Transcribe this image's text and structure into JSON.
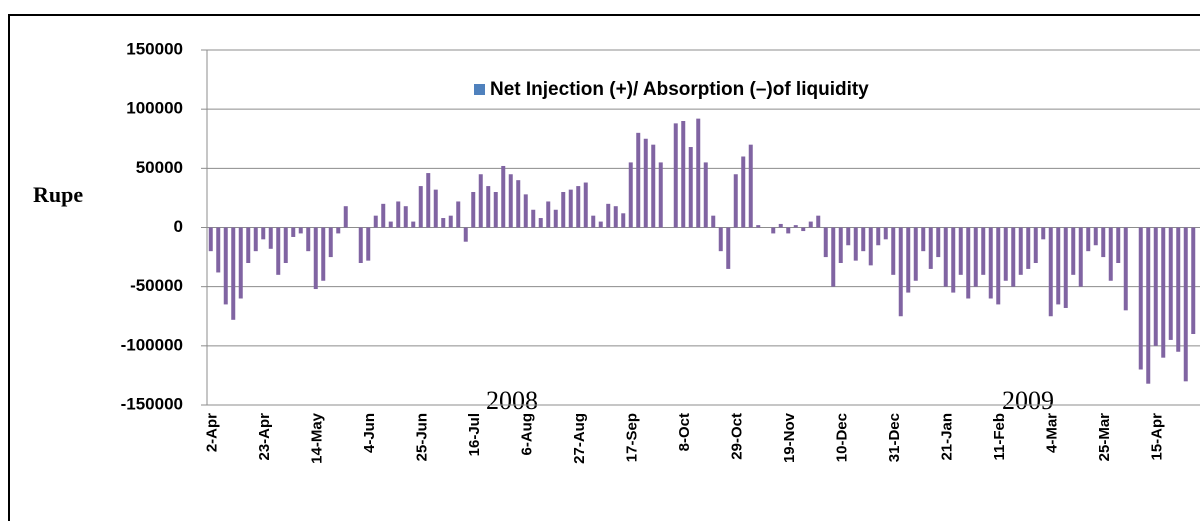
{
  "chart_data": {
    "type": "bar",
    "y_label": "Rupe",
    "annotations": [
      "2008",
      "2009"
    ],
    "categories": [
      "2-Apr",
      null,
      null,
      null,
      null,
      null,
      null,
      "23-Apr",
      null,
      null,
      null,
      null,
      null,
      null,
      "14-May",
      null,
      null,
      null,
      null,
      null,
      null,
      "4-Jun",
      null,
      null,
      null,
      null,
      null,
      null,
      "25-Jun",
      null,
      null,
      null,
      null,
      null,
      null,
      "16-Jul",
      null,
      null,
      null,
      null,
      null,
      null,
      "6-Aug",
      null,
      null,
      null,
      null,
      null,
      null,
      "27-Aug",
      null,
      null,
      null,
      null,
      null,
      null,
      "17-Sep",
      null,
      null,
      null,
      null,
      null,
      null,
      "8-Oct",
      null,
      null,
      null,
      null,
      null,
      null,
      "29-Oct",
      null,
      null,
      null,
      null,
      null,
      null,
      "19-Nov",
      null,
      null,
      null,
      null,
      null,
      null,
      "10-Dec",
      null,
      null,
      null,
      null,
      null,
      null,
      "31-Dec",
      null,
      null,
      null,
      null,
      null,
      null,
      "21-Jan",
      null,
      null,
      null,
      null,
      null,
      null,
      "11-Feb",
      null,
      null,
      null,
      null,
      null,
      null,
      "4-Mar",
      null,
      null,
      null,
      null,
      null,
      null,
      "25-Mar",
      null,
      null,
      null,
      null,
      null,
      null,
      "15-Apr",
      null,
      null,
      null,
      null,
      null
    ],
    "series": [
      {
        "name": "Net Injection (+)/ Absorption (–)of liquidity",
        "color": "#8064a2",
        "legend_color": "#4f81bd",
        "values": [
          -20000,
          -38000,
          -65000,
          -78000,
          -60000,
          -30000,
          -20000,
          -10000,
          -18000,
          -40000,
          -30000,
          -8000,
          -5000,
          -20000,
          -52000,
          -45000,
          -25000,
          -5000,
          18000,
          0,
          -30000,
          -28000,
          10000,
          20000,
          5000,
          22000,
          18000,
          5000,
          35000,
          46000,
          32000,
          8000,
          10000,
          22000,
          -12000,
          30000,
          45000,
          35000,
          30000,
          52000,
          45000,
          40000,
          28000,
          15000,
          8000,
          22000,
          15000,
          30000,
          32000,
          35000,
          38000,
          10000,
          5000,
          20000,
          18000,
          12000,
          55000,
          80000,
          75000,
          70000,
          55000,
          0,
          88000,
          90000,
          68000,
          92000,
          55000,
          10000,
          -20000,
          -35000,
          45000,
          60000,
          70000,
          2000,
          0,
          -5000,
          3000,
          -5000,
          2000,
          -3000,
          5000,
          10000,
          -25000,
          -50000,
          -30000,
          -15000,
          -28000,
          -20000,
          -32000,
          -15000,
          -10000,
          -40000,
          -75000,
          -55000,
          -45000,
          -20000,
          -35000,
          -25000,
          -50000,
          -55000,
          -40000,
          -60000,
          -50000,
          -40000,
          -60000,
          -65000,
          -45000,
          -50000,
          -40000,
          -35000,
          -30000,
          -10000,
          -75000,
          -65000,
          -68000,
          -40000,
          -50000,
          -20000,
          -15000,
          -25000,
          -45000,
          -30000,
          -70000,
          0,
          -120000,
          -132000,
          -100000,
          -110000,
          -95000,
          -105000,
          -130000,
          -90000
        ]
      }
    ],
    "ylim": [
      -150000,
      150000
    ],
    "yticks": [
      -150000,
      -100000,
      -50000,
      0,
      50000,
      100000,
      150000
    ],
    "grid": true
  }
}
